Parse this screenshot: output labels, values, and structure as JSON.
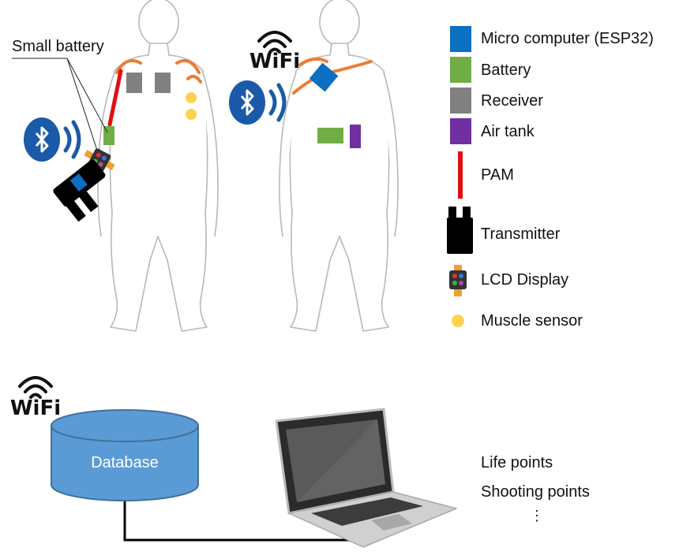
{
  "annotations": {
    "small_battery": "Small battery",
    "wifi_top": "WiFi",
    "wifi_bottom": "WiFi"
  },
  "database": {
    "label": "Database"
  },
  "legend": [
    {
      "name": "micro-computer",
      "label": "Micro computer (ESP32)",
      "color": "#0b6fc2"
    },
    {
      "name": "battery",
      "label": "Battery",
      "color": "#70ad47"
    },
    {
      "name": "receiver",
      "label": "Receiver",
      "color": "#808080"
    },
    {
      "name": "air-tank",
      "label": "Air tank",
      "color": "#7030a0"
    },
    {
      "name": "pam",
      "label": "PAM",
      "color": "#e01010"
    },
    {
      "name": "transmitter",
      "label": "Transmitter",
      "color": "#000000"
    },
    {
      "name": "lcd-display",
      "label": "LCD Display",
      "color": "#f0a030"
    },
    {
      "name": "muscle-sensor",
      "label": "Muscle sensor",
      "color": "#ffd24d"
    }
  ],
  "points": {
    "life": "Life points",
    "shooting": "Shooting points",
    "more": "⋮"
  },
  "colors": {
    "bluetooth": "#1a5aa8",
    "wire_orange": "#ed7d31",
    "database_fill": "#5b9bd5"
  },
  "icons": [
    "bluetooth-icon",
    "wifi-icon",
    "laptop-icon",
    "database-icon",
    "lcd-watch-icon"
  ]
}
